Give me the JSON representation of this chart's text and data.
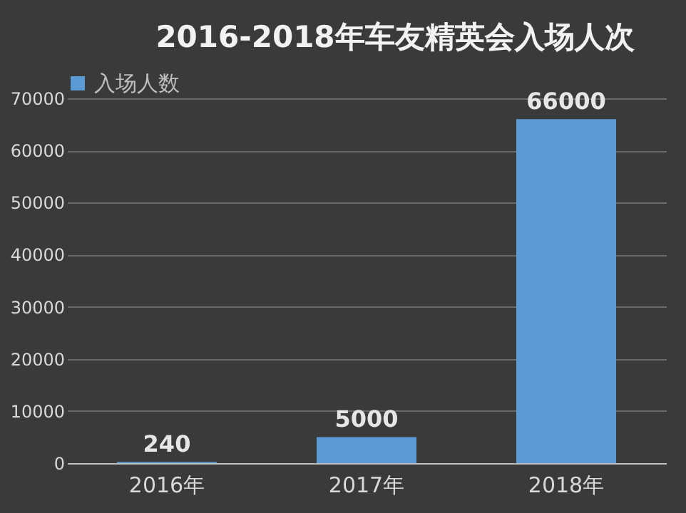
{
  "chart_data": {
    "type": "bar",
    "title": "2016-2018年车友精英会入场人次",
    "categories": [
      "2016年",
      "2017年",
      "2018年"
    ],
    "series": [
      {
        "name": "入场人数",
        "color": "#5b9bd5",
        "values": [
          240,
          5000,
          66000
        ]
      }
    ],
    "ylim": [
      0,
      70000
    ],
    "yticks": [
      0,
      10000,
      20000,
      30000,
      40000,
      50000,
      60000,
      70000
    ],
    "grid": "y",
    "legend": "top",
    "data_labels": true
  }
}
